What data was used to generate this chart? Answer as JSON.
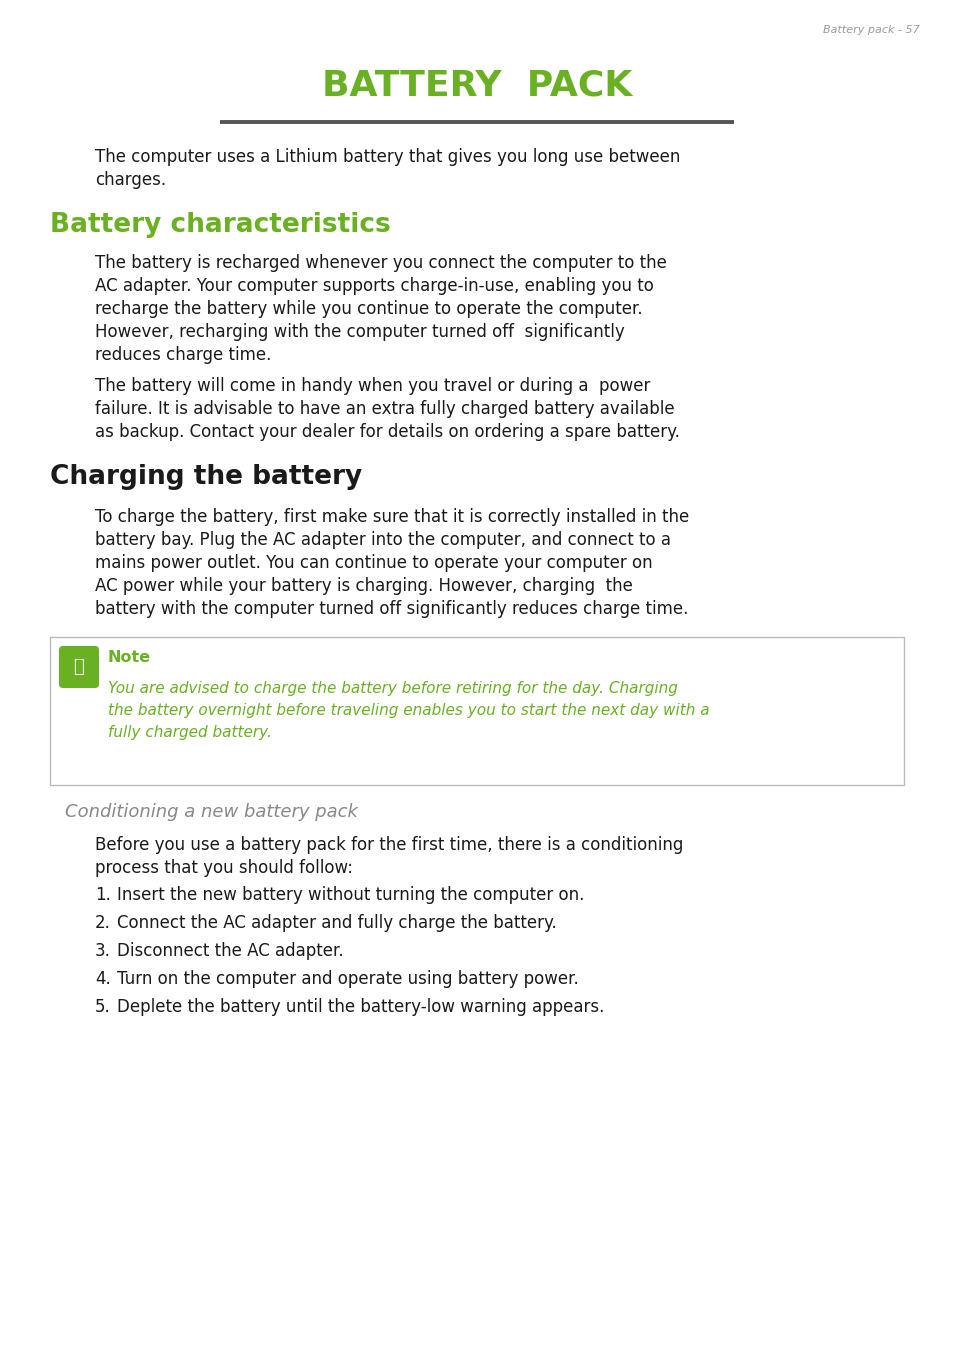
{
  "page_header": "Battery pack - 57",
  "main_title_B": "B",
  "main_title_rest": "ATTERY",
  "main_title_P": "P",
  "main_title_ack": "ACK",
  "main_title_color": "#6ab023",
  "divider_color": "#555555",
  "section1_title": "Battery characteristics",
  "section1_title_color": "#6ab023",
  "section2_title": "Charging the battery",
  "section2_title_color": "#1a1a1a",
  "conditioning_title": "Conditioning a new battery pack",
  "conditioning_title_color": "#888888",
  "body_color": "#1a1a1a",
  "note_title": "Note",
  "note_title_color": "#6ab023",
  "note_icon_color": "#6ab023",
  "note_box_border": "#aaaaaa",
  "note_text_color": "#6ab023",
  "para1_lines": [
    "The computer uses a Lithium battery that gives you long use between",
    "charges."
  ],
  "para2_lines": [
    "The battery is recharged whenever you connect the computer to the",
    "AC adapter. Your computer supports charge-in-use, enabling you to",
    "recharge the battery while you continue to operate the computer.",
    "However, recharging with the computer turned off  significantly",
    "reduces charge time."
  ],
  "para3_lines": [
    "The battery will come in handy when you travel or during a  power",
    "failure. It is advisable to have an extra fully charged battery available",
    "as backup. Contact your dealer for details on ordering a spare battery."
  ],
  "para4_lines": [
    "To charge the battery, first make sure that it is correctly installed in the",
    "battery bay. Plug the AC adapter into the computer, and connect to a",
    "mains power outlet. You can continue to operate your computer on",
    "AC power while your battery is charging. However, charging  the",
    "battery with the computer turned off significantly reduces charge time."
  ],
  "note_lines": [
    "You are advised to charge the battery before retiring for the day. Charging",
    "the battery overnight before traveling enables you to start the next day with a",
    "fully charged battery."
  ],
  "cond_para_lines": [
    "Before you use a battery pack for the first time, there is a conditioning",
    "process that you should follow:"
  ],
  "list_items": [
    "Insert the new battery without turning the computer on.",
    "Connect the AC adapter and fully charge the battery.",
    "Disconnect the AC adapter.",
    "Turn on the computer and operate using battery power.",
    "Deplete the battery until the battery-low warning appears."
  ],
  "background_color": "#ffffff"
}
